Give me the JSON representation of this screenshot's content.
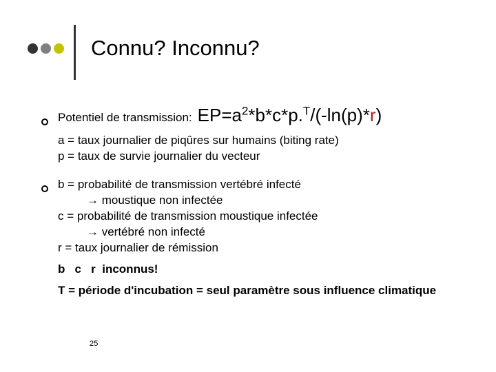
{
  "colors": {
    "dot1": "#333333",
    "dot2": "#808080",
    "dot3": "#c3c400",
    "rule": "#333333",
    "accent_r": "#b22222"
  },
  "title": "Connu? Inconnu?",
  "lead": "Potentiel de transmission:",
  "formula": {
    "p1": "EP=a",
    "sup1": "2",
    "p2": "*b*c*p.",
    "sup2": "T",
    "p3": "/(-ln(p)*",
    "r": "r",
    "p4": ")"
  },
  "defs1": {
    "a": "a = taux journalier de piqûres sur humains (biting rate)",
    "p": "p = taux de survie journalier du vecteur"
  },
  "defs2": {
    "b1": "b = probabilité de transmission vertébré infecté",
    "b2": "→ moustique non infectée",
    "c1": "c = probabilité de transmission moustique infectée",
    "c2": "→ vertébré non infecté",
    "r": "r = taux journalier de rémission"
  },
  "unknowns": "b   c   r  inconnus!",
  "tline": "T = période d'incubation = seul paramètre sous influence climatique",
  "page": "25"
}
